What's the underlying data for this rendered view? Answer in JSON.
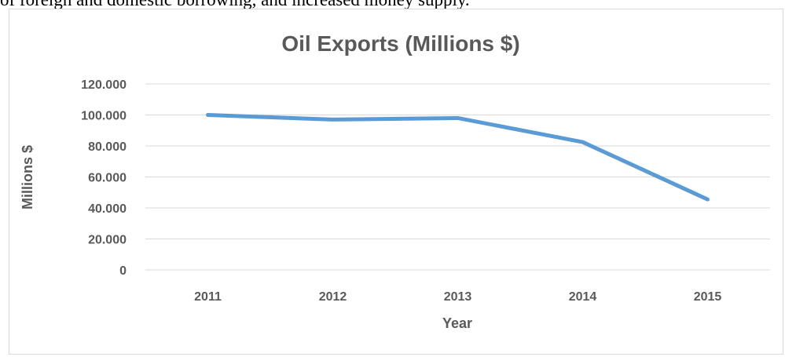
{
  "document": {
    "top_text": "of foreign and domestic borrowing, and increased money supply."
  },
  "chart_data": {
    "type": "line",
    "title": "Oil Exports (Millions $)",
    "xlabel": "Year",
    "ylabel": "Millions $",
    "categories": [
      "2011",
      "2012",
      "2013",
      "2014",
      "2015"
    ],
    "series": [
      {
        "values": [
          100000,
          97000,
          98000,
          82500,
          45500
        ],
        "color": "#5b9bd5"
      }
    ],
    "ylim": [
      0,
      120000
    ],
    "yticks": [
      0,
      20000,
      40000,
      60000,
      80000,
      100000,
      120000
    ],
    "ytick_labels": [
      "0",
      "20.000",
      "40.000",
      "60.000",
      "80.000",
      "100.000",
      "120.000"
    ],
    "grid": true,
    "legend": "none"
  }
}
